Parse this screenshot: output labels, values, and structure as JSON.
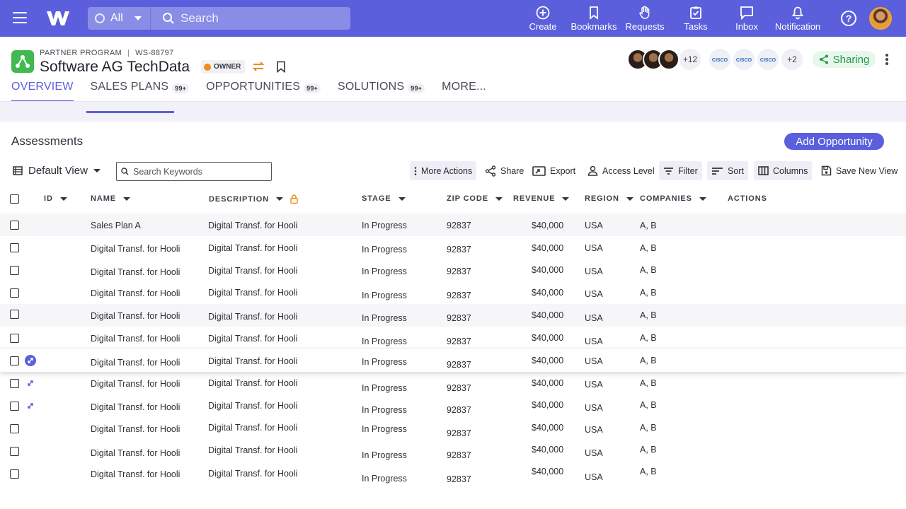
{
  "topbar": {
    "scope": "All",
    "search_placeholder": "Search",
    "nav": [
      {
        "label": "Create",
        "icon": "plus-circle-icon"
      },
      {
        "label": "Bookmarks",
        "icon": "bookmark-icon"
      },
      {
        "label": "Requests",
        "icon": "hand-icon"
      },
      {
        "label": "Tasks",
        "icon": "clipboard-check-icon"
      },
      {
        "label": "Inbox",
        "icon": "chat-icon"
      },
      {
        "label": "Notification",
        "icon": "bell-icon"
      }
    ],
    "help": "?"
  },
  "record": {
    "program": "PARTNER PROGRAM",
    "id": "WS-88797",
    "title": "Software AG TechData",
    "owner_badge": "OWNER",
    "members_more": "+12",
    "partner_logo_text": "CISCO",
    "partners_more": "+2",
    "sharing": "Sharing"
  },
  "tabs": [
    {
      "label": "OVERVIEW",
      "count": ""
    },
    {
      "label": "SALES PLANS",
      "count": "99+"
    },
    {
      "label": "OPPORTUNITIES",
      "count": "99+"
    },
    {
      "label": "SOLUTIONS",
      "count": "99+"
    },
    {
      "label": "MORE...",
      "count": ""
    }
  ],
  "section": {
    "title": "Assessments",
    "add_button": "Add Opportunity",
    "view": "Default View",
    "keyword_placeholder": "Search Keywords"
  },
  "toolbar": {
    "more_actions": "More Actions",
    "share": "Share",
    "export": "Export",
    "access_level": "Access Level",
    "filter": "Filter",
    "sort": "Sort",
    "columns": "Columns",
    "save_view": "Save New View"
  },
  "table": {
    "headers": [
      "ID",
      "NAME",
      "DESCRIPTION",
      "STAGE",
      "ZIP CODE",
      "REVENUE",
      "REGION",
      "COMPANIES",
      "ACTIONS"
    ],
    "rows": [
      {
        "name": "Sales Plan A",
        "description": "Digital Transf. for Hooli",
        "stage": "In Progress",
        "zip": "92837",
        "revenue": "$40,000",
        "region": "USA",
        "companies": "A, B"
      },
      {
        "name": "Digital Transf. for Hooli",
        "description": "Digital Transf. for Hooli",
        "stage": "In Progress",
        "zip": "92837",
        "revenue": "$40,000",
        "region": "USA",
        "companies": "A, B"
      },
      {
        "name": "Digital Transf. for Hooli",
        "description": "Digital Transf. for Hooli",
        "stage": "In Progress",
        "zip": "92837",
        "revenue": "$40,000",
        "region": "USA",
        "companies": "A, B"
      },
      {
        "name": "Digital Transf. for Hooli",
        "description": "Digital Transf. for Hooli",
        "stage": "In Progress",
        "zip": "92837",
        "revenue": "$40,000",
        "region": "USA",
        "companies": "A, B"
      },
      {
        "name": "Digital Transf. for Hooli",
        "description": "Digital Transf. for Hooli",
        "stage": "In Progress",
        "zip": "92837",
        "revenue": "$40,000",
        "region": "USA",
        "companies": "A, B"
      },
      {
        "name": "Digital Transf. for Hooli",
        "description": "Digital Transf. for Hooli",
        "stage": "In Progress",
        "zip": "92837",
        "revenue": "$40,000",
        "region": "USA",
        "companies": "A, B"
      },
      {
        "name": "Digital Transf. for Hooli",
        "description": "Digital Transf. for Hooli",
        "stage": "In Progress",
        "zip": "92837",
        "revenue": "$40,000",
        "region": "USA",
        "companies": "A, B"
      },
      {
        "name": "Digital Transf. for Hooli",
        "description": "Digital Transf. for Hooli",
        "stage": "In Progress",
        "zip": "92837",
        "revenue": "$40,000",
        "region": "USA",
        "companies": "A, B"
      },
      {
        "name": "Digital Transf. for Hooli",
        "description": "Digital Transf. for Hooli",
        "stage": "In Progress",
        "zip": "92837",
        "revenue": "$40,000",
        "region": "USA",
        "companies": "A, B"
      },
      {
        "name": "Digital Transf. for Hooli",
        "description": "Digital Transf. for Hooli",
        "stage": "In Progress",
        "zip": "92837",
        "revenue": "$40,000",
        "region": "USA",
        "companies": "A, B"
      },
      {
        "name": "Digital Transf. for Hooli",
        "description": "Digital Transf. for Hooli",
        "stage": "In Progress",
        "zip": "92837",
        "revenue": "$40,000",
        "region": "USA",
        "companies": "A, B"
      },
      {
        "name": "Digital Transf. for Hooli",
        "description": "Digital Transf. for Hooli",
        "stage": "In Progress",
        "zip": "92837",
        "revenue": "$40,000",
        "region": "USA",
        "companies": "A, B"
      }
    ]
  },
  "colors": {
    "brand": "#5b5fdc",
    "success": "#3fb950",
    "owner": "#f08c1e"
  }
}
